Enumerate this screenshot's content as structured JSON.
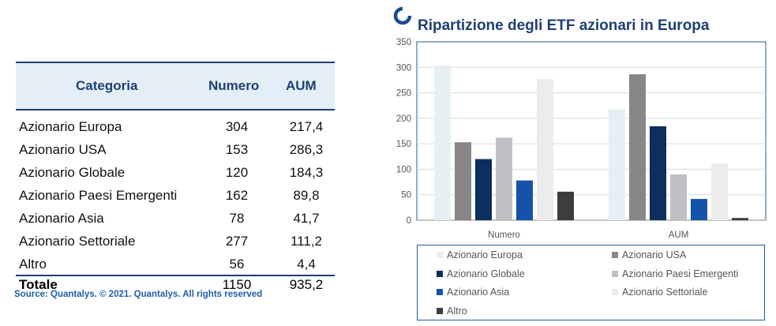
{
  "table": {
    "headers": {
      "category": "Categoria",
      "number": "Numero",
      "aum": "AUM"
    },
    "rows": [
      {
        "category": "Azionario Europa",
        "number": "304",
        "aum": "217,4"
      },
      {
        "category": "Azionario USA",
        "number": "153",
        "aum": "286,3"
      },
      {
        "category": "Azionario Globale",
        "number": "120",
        "aum": "184,3"
      },
      {
        "category": "Azionario Paesi Emergenti",
        "number": "162",
        "aum": "89,8"
      },
      {
        "category": "Azionario Asia",
        "number": "78",
        "aum": "41,7"
      },
      {
        "category": "Azionario Settoriale",
        "number": "277",
        "aum": "111,2"
      },
      {
        "category": "Altro",
        "number": "56",
        "aum": "4,4"
      }
    ],
    "total": {
      "label": "Totale",
      "number": "1150",
      "aum": "935,2"
    }
  },
  "source": "Source: Quantalys. © 2021. Quantalys. All rights reserved",
  "chart_data": {
    "type": "bar",
    "title": "Ripartizione degli ETF azionari in Europa",
    "xlabel": "",
    "ylabel": "",
    "categories": [
      "Numero",
      "AUM"
    ],
    "ylim": [
      0,
      350
    ],
    "yticks": [
      0,
      50,
      100,
      150,
      200,
      250,
      300,
      350
    ],
    "grid": true,
    "legend_position": "bottom",
    "series": [
      {
        "name": "Azionario Europa",
        "values": [
          304,
          217.4
        ],
        "color": "#e6f0f4"
      },
      {
        "name": "Azionario USA",
        "values": [
          153,
          286.3
        ],
        "color": "#878787"
      },
      {
        "name": "Azionario Globale",
        "values": [
          120,
          184.3
        ],
        "color": "#0d2f5e"
      },
      {
        "name": "Azionario Paesi Emergenti",
        "values": [
          162,
          89.8
        ],
        "color": "#c0c0c4"
      },
      {
        "name": "Azionario Asia",
        "values": [
          78,
          41.7
        ],
        "color": "#1453a8"
      },
      {
        "name": "Azionario Settoriale",
        "values": [
          277,
          111.2
        ],
        "color": "#ececec"
      },
      {
        "name": "Altro",
        "values": [
          56,
          4.4
        ],
        "color": "#3d3d3d"
      }
    ]
  },
  "colors": {
    "accent": "#1f3f73",
    "header_bg": "#e3eef6",
    "source": "#1f5ea8",
    "logo": "#1a4d8c"
  },
  "icons": {
    "logo": "quantalys-logo-icon"
  }
}
